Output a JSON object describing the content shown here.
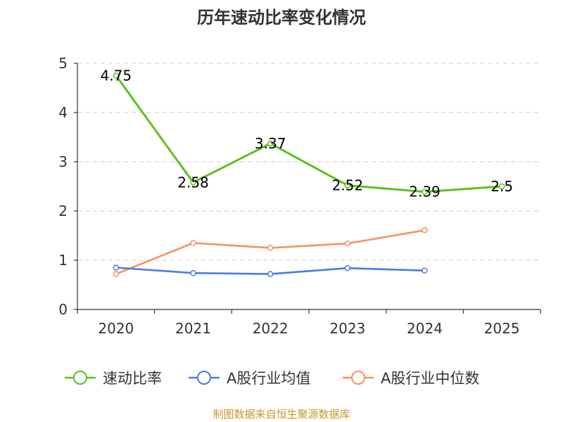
{
  "chart_data": {
    "type": "line",
    "title": "历年速动比率变化情况",
    "categories": [
      "2020",
      "2021",
      "2022",
      "2023",
      "2024",
      "2025"
    ],
    "ylim": [
      0,
      5
    ],
    "yticks": [
      "0",
      "1",
      "2",
      "3",
      "4",
      "5"
    ],
    "grid": true,
    "legend_position": "bottom",
    "series": [
      {
        "name": "速动比率",
        "color": "#5cc11f",
        "values": [
          4.75,
          2.58,
          3.37,
          2.52,
          2.39,
          2.5
        ],
        "labels": [
          "4.75",
          "2.58",
          "3.37",
          "2.52",
          "2.39",
          "2.5"
        ]
      },
      {
        "name": "A股行业均值",
        "color": "#4a7de0",
        "values": [
          0.85,
          0.74,
          0.72,
          0.84,
          0.79,
          null
        ]
      },
      {
        "name": "A股行业中位数",
        "color": "#f5925e",
        "values": [
          0.72,
          1.35,
          1.25,
          1.34,
          1.61,
          null
        ]
      }
    ]
  },
  "source": "制图数据来自恒生聚源数据库"
}
